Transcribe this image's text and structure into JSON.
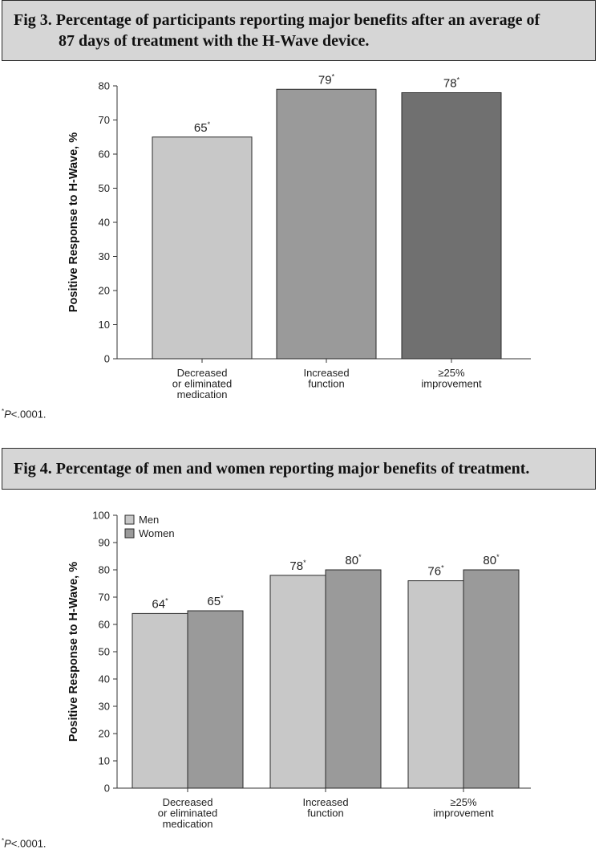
{
  "figures": [
    {
      "title_line1": "Fig 3.  Percentage of participants reporting major benefits after an average of",
      "title_line2": "87 days of treatment with the H-Wave device.",
      "footnote_mark": "*",
      "footnote_p": "P",
      "footnote_rest": "<.0001."
    },
    {
      "title_line1": "Fig 4.  Percentage of men and women reporting major benefits of treatment.",
      "title_line2": "",
      "footnote_mark": "*",
      "footnote_p": "P",
      "footnote_rest": "<.0001."
    }
  ],
  "chart_data": [
    {
      "type": "bar",
      "categories": [
        [
          "Decreased",
          "or eliminated",
          "medication"
        ],
        [
          "Increased",
          "function"
        ],
        [
          "≥25%",
          "improvement"
        ]
      ],
      "series": [
        {
          "values": [
            65,
            79,
            78
          ],
          "colors": [
            "#c8c8c8",
            "#9a9a9a",
            "#707070"
          ]
        }
      ],
      "data_labels": [
        "65",
        "79",
        "78"
      ],
      "label_marker": "*",
      "ylabel": "Positive Response to H-Wave, %",
      "ylim": [
        0,
        80
      ],
      "yticks": [
        0,
        10,
        20,
        30,
        40,
        50,
        60,
        70,
        80
      ],
      "legend": null
    },
    {
      "type": "bar",
      "categories": [
        [
          "Decreased",
          "or eliminated",
          "medication"
        ],
        [
          "Increased",
          "function"
        ],
        [
          "≥25%",
          "improvement"
        ]
      ],
      "series": [
        {
          "name": "Men",
          "values": [
            64,
            78,
            76
          ],
          "color": "#c8c8c8"
        },
        {
          "name": "Women",
          "values": [
            65,
            80,
            80
          ],
          "color": "#9a9a9a"
        }
      ],
      "data_labels": [
        [
          "64",
          "78",
          "76"
        ],
        [
          "65",
          "80",
          "80"
        ]
      ],
      "label_marker": "*",
      "ylabel": "Positive Response to H-Wave, %",
      "ylim": [
        0,
        100
      ],
      "yticks": [
        0,
        10,
        20,
        30,
        40,
        50,
        60,
        70,
        80,
        90,
        100
      ],
      "legend": "top-left"
    }
  ]
}
